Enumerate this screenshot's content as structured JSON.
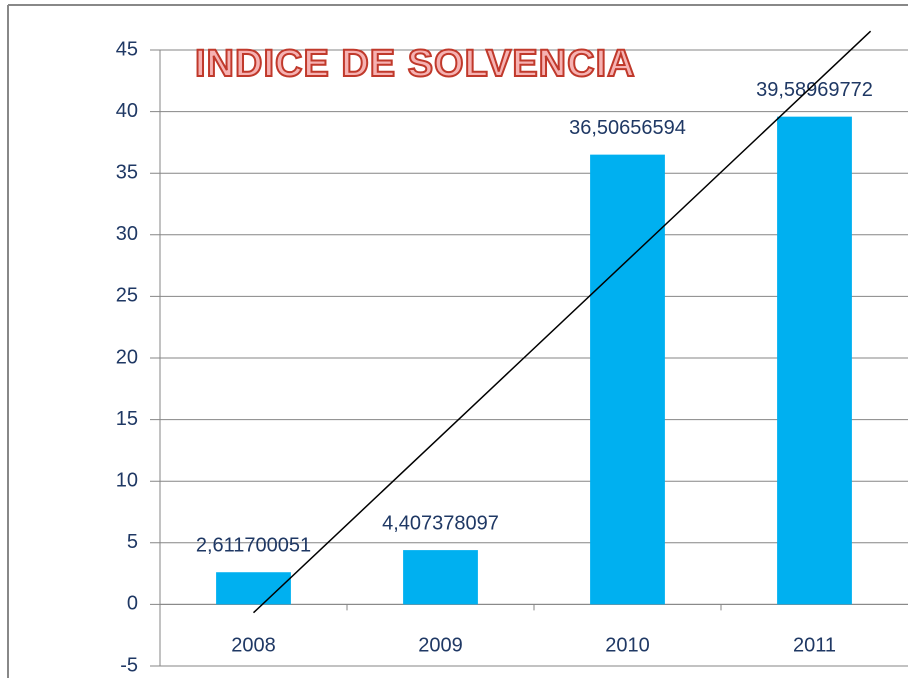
{
  "chart_data": {
    "type": "bar",
    "title": "INDICE DE SOLVENCIA",
    "categories": [
      "2008",
      "2009",
      "2010",
      "2011"
    ],
    "values": [
      2.611700051,
      4.407378097,
      36.50656594,
      39.58969772
    ],
    "value_labels": [
      "2,611700051",
      "4,407378097",
      "36,50656594",
      "39,58969772"
    ],
    "color": "#00b0f0",
    "ylim": [
      -5,
      45
    ],
    "yticks": [
      -5,
      0,
      5,
      10,
      15,
      20,
      25,
      30,
      35,
      40,
      45
    ],
    "grid": true,
    "trendline": "linear",
    "trendline_color": "#000000"
  }
}
